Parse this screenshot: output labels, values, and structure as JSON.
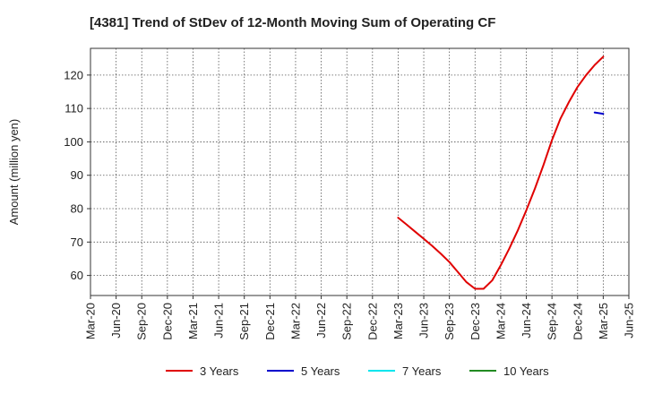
{
  "chart_data": {
    "type": "line",
    "title": "[4381]  Trend of StDev of 12-Month Moving Sum of Operating CF",
    "ylabel": "Amount (million yen)",
    "xlabel": "",
    "ylim": [
      54,
      128
    ],
    "yticks": [
      60,
      70,
      80,
      90,
      100,
      110,
      120
    ],
    "xticks": [
      "Mar-20",
      "Jun-20",
      "Sep-20",
      "Dec-20",
      "Mar-21",
      "Jun-21",
      "Sep-21",
      "Dec-21",
      "Mar-22",
      "Jun-22",
      "Sep-22",
      "Dec-22",
      "Mar-23",
      "Jun-23",
      "Sep-23",
      "Dec-23",
      "Mar-24",
      "Jun-24",
      "Sep-24",
      "Dec-24",
      "Mar-25",
      "Jun-25"
    ],
    "grid": true,
    "legend_position": "bottom",
    "series": [
      {
        "name": "3 Years",
        "color": "#e00000",
        "x": [
          "Mar-23",
          "Apr-23",
          "May-23",
          "Jun-23",
          "Jul-23",
          "Aug-23",
          "Sep-23",
          "Oct-23",
          "Nov-23",
          "Dec-23",
          "Jan-24",
          "Feb-24",
          "Mar-24",
          "Apr-24",
          "May-24",
          "Jun-24",
          "Jul-24",
          "Aug-24",
          "Sep-24",
          "Oct-24",
          "Nov-24",
          "Dec-24",
          "Jan-25",
          "Feb-25",
          "Mar-25"
        ],
        "values": [
          77.3,
          75.2,
          73.1,
          71.0,
          68.8,
          66.5,
          64.0,
          61.0,
          58.0,
          56.0,
          56.0,
          58.5,
          63.0,
          68.0,
          73.5,
          79.5,
          86.0,
          93.0,
          100.5,
          107.0,
          112.0,
          116.5,
          120.0,
          123.0,
          125.5
        ]
      },
      {
        "name": "5 Years",
        "color": "#0000cc",
        "x": [
          "Feb-25",
          "Mar-25"
        ],
        "values": [
          108.8,
          108.4
        ]
      },
      {
        "name": "7 Years",
        "color": "#00e5ee",
        "x": [],
        "values": []
      },
      {
        "name": "10 Years",
        "color": "#228b22",
        "x": [],
        "values": []
      }
    ]
  }
}
